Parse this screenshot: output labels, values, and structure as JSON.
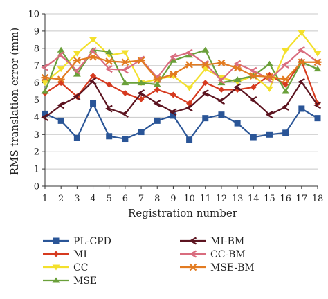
{
  "chart_data": {
    "type": "line",
    "xlabel": "Registration number",
    "ylabel": "RMS translation error (mm)",
    "ylim": [
      0,
      10
    ],
    "xlim": [
      1,
      18
    ],
    "grid": "horizontal",
    "legend_placement": "bottom",
    "x": [
      1,
      2,
      3,
      4,
      5,
      6,
      7,
      8,
      9,
      10,
      11,
      12,
      13,
      14,
      15,
      16,
      17,
      18
    ],
    "y_ticks": [
      "0",
      "1",
      "2",
      "3",
      "4",
      "5",
      "6",
      "7",
      "8",
      "9",
      "10"
    ],
    "x_ticks": [
      "1",
      "2",
      "3",
      "4",
      "5",
      "6",
      "7",
      "8",
      "9",
      "10",
      "11",
      "12",
      "13",
      "14",
      "15",
      "16",
      "17",
      "18"
    ],
    "series": [
      {
        "name": "PL-CPD",
        "color": "#2a5597",
        "marker": "square",
        "values": [
          4.2,
          3.8,
          2.8,
          4.8,
          2.9,
          2.75,
          3.15,
          3.8,
          4.1,
          2.7,
          3.95,
          4.15,
          3.65,
          2.85,
          3.0,
          3.1,
          4.5,
          3.95
        ]
      },
      {
        "name": "MI",
        "color": "#d63a1f",
        "marker": "diamond",
        "values": [
          5.4,
          6.0,
          5.2,
          6.4,
          5.9,
          5.4,
          5.05,
          5.6,
          5.3,
          4.8,
          6.0,
          5.6,
          5.6,
          5.75,
          6.45,
          5.9,
          7.25,
          4.8
        ]
      },
      {
        "name": "CC",
        "color": "#f3e02c",
        "marker": "triangle-down",
        "values": [
          6.0,
          6.8,
          7.7,
          8.5,
          7.6,
          7.75,
          6.0,
          6.2,
          6.4,
          5.7,
          6.8,
          6.3,
          6.05,
          6.4,
          5.65,
          7.85,
          8.9,
          7.7
        ]
      },
      {
        "name": "MSE",
        "color": "#6aa03a",
        "marker": "triangle-up",
        "values": [
          5.5,
          7.9,
          6.5,
          7.9,
          7.8,
          6.0,
          6.0,
          5.9,
          7.3,
          7.6,
          7.9,
          6.0,
          6.2,
          6.4,
          7.1,
          5.5,
          7.2,
          6.8
        ]
      },
      {
        "name": "MI-BM",
        "color": "#5c1420",
        "marker": "chevron",
        "values": [
          4.0,
          4.7,
          5.2,
          6.1,
          4.5,
          4.2,
          5.4,
          4.8,
          4.3,
          4.55,
          5.4,
          4.95,
          5.75,
          5.0,
          4.15,
          4.6,
          6.05,
          4.7
        ]
      },
      {
        "name": "CC-BM",
        "color": "#d96c7e",
        "marker": "chevron",
        "values": [
          6.9,
          7.6,
          6.7,
          7.85,
          6.8,
          6.75,
          7.35,
          6.3,
          7.5,
          7.75,
          7.1,
          6.15,
          7.1,
          6.7,
          6.2,
          7.05,
          7.9,
          7.2
        ]
      },
      {
        "name": "MSE-BM",
        "color": "#e27b21",
        "marker": "star",
        "values": [
          6.3,
          6.2,
          7.3,
          7.5,
          7.25,
          7.2,
          7.3,
          6.2,
          6.5,
          7.05,
          7.05,
          7.15,
          6.85,
          6.4,
          6.35,
          6.2,
          7.2,
          7.2
        ]
      }
    ]
  }
}
